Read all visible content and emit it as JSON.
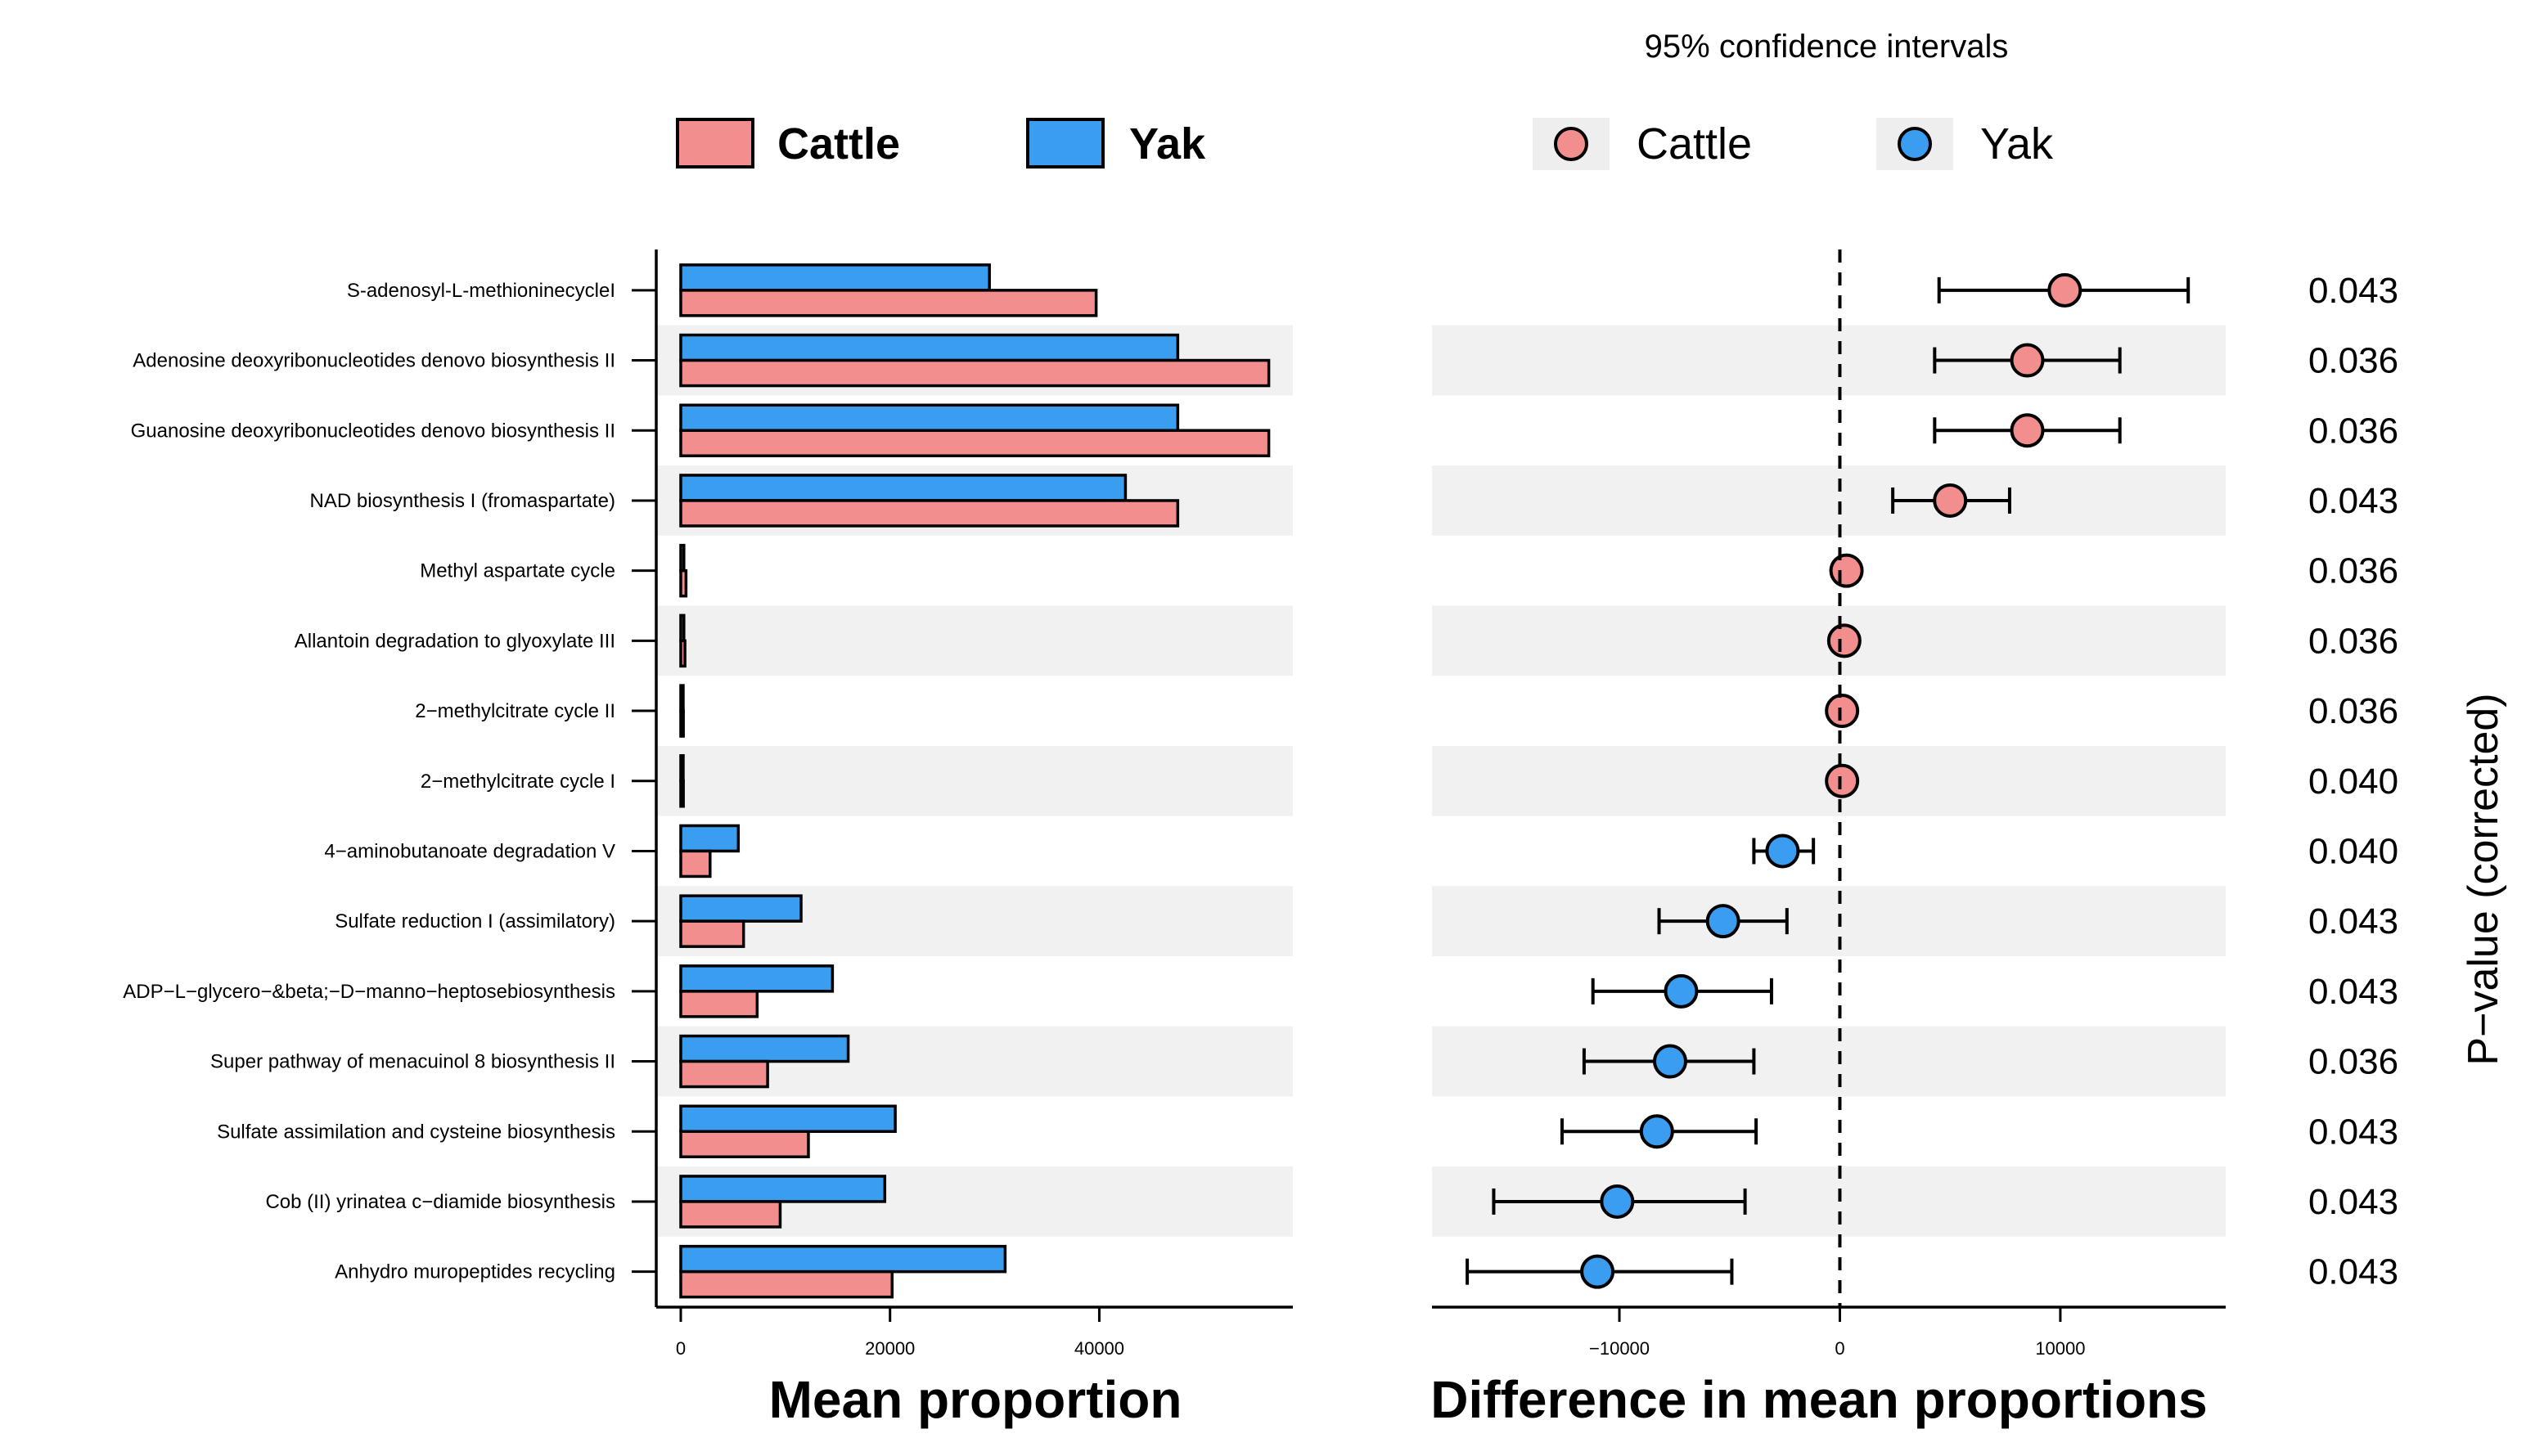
{
  "colors": {
    "cattle": "#f28e8e",
    "yak": "#3a9df0",
    "band": "#f1f1f1",
    "stroke": "#000000"
  },
  "chart_data": {
    "type": "bar",
    "categories": [
      "S-adenosyl-L-methioninecycleI",
      "Adenosine deoxyribonucleotides denovo biosynthesis II",
      "Guanosine deoxyribonucleotides denovo biosynthesis II",
      "NAD biosynthesis I (fromaspartate)",
      "Methyl aspartate cycle",
      "Allantoin degradation to glyoxylate III",
      "2−methylcitrate cycle II",
      "2−methylcitrate cycle I",
      "4−aminobutanoate degradation V",
      "Sulfate reduction I (assimilatory)",
      "ADP−L−glycero−&beta;−D−manno−heptosebiosynthesis",
      "Super pathway of menacuinol  8 biosynthesis II",
      "Sulfate assimilation and cysteine biosynthesis",
      "Cob (II) yrinatea c−diamide biosynthesis",
      "Anhydro muropeptides recycling"
    ],
    "bar_panel": {
      "xlabel": "Mean proportion",
      "xlim": [
        -2500,
        58500
      ],
      "xticks": [
        0,
        20000,
        40000
      ],
      "xtick_labels": [
        "0",
        "20000",
        "40000"
      ],
      "legend": [
        {
          "name": "Cattle",
          "color": "#f28e8e"
        },
        {
          "name": "Yak",
          "color": "#3a9df0"
        }
      ],
      "series": [
        {
          "name": "Yak",
          "color": "#3a9df0",
          "values": [
            29500,
            47500,
            47500,
            42500,
            300,
            300,
            200,
            200,
            5500,
            11500,
            14500,
            16000,
            20500,
            19500,
            31000
          ]
        },
        {
          "name": "Cattle",
          "color": "#f28e8e",
          "values": [
            39700,
            56200,
            56200,
            47500,
            500,
            400,
            250,
            250,
            2800,
            6000,
            7300,
            8300,
            12200,
            9500,
            20200
          ]
        }
      ]
    },
    "difference_panel": {
      "type": "scatter",
      "title": "95% confidence intervals",
      "xlabel": "Difference in mean proportions",
      "xlim": [
        -18500,
        17500
      ],
      "xticks": [
        -10000,
        0,
        10000
      ],
      "xtick_labels": [
        "−10000",
        "0",
        "10000"
      ],
      "legend": [
        {
          "name": "Cattle",
          "color": "#f28e8e"
        },
        {
          "name": "Yak",
          "color": "#3a9df0"
        }
      ],
      "points": [
        {
          "diff": 10200,
          "lower": 4500,
          "upper": 15800,
          "group": "Cattle"
        },
        {
          "diff": 8500,
          "lower": 4300,
          "upper": 12700,
          "group": "Cattle"
        },
        {
          "diff": 8500,
          "lower": 4300,
          "upper": 12700,
          "group": "Cattle"
        },
        {
          "diff": 5000,
          "lower": 2400,
          "upper": 7700,
          "group": "Cattle"
        },
        {
          "diff": 300,
          "lower": 300,
          "upper": 300,
          "group": "Cattle"
        },
        {
          "diff": 200,
          "lower": 200,
          "upper": 200,
          "group": "Cattle"
        },
        {
          "diff": 100,
          "lower": 100,
          "upper": 100,
          "group": "Cattle"
        },
        {
          "diff": 100,
          "lower": 100,
          "upper": 100,
          "group": "Cattle"
        },
        {
          "diff": -2600,
          "lower": -3900,
          "upper": -1200,
          "group": "Yak"
        },
        {
          "diff": -5300,
          "lower": -8200,
          "upper": -2400,
          "group": "Yak"
        },
        {
          "diff": -7200,
          "lower": -11200,
          "upper": -3100,
          "group": "Yak"
        },
        {
          "diff": -7700,
          "lower": -11600,
          "upper": -3900,
          "group": "Yak"
        },
        {
          "diff": -8300,
          "lower": -12600,
          "upper": -3800,
          "group": "Yak"
        },
        {
          "diff": -10100,
          "lower": -15700,
          "upper": -4300,
          "group": "Yak"
        },
        {
          "diff": -11000,
          "lower": -16900,
          "upper": -4900,
          "group": "Yak"
        }
      ]
    },
    "pvalues": {
      "label": "P−value (corrected)",
      "values": [
        "0.043",
        "0.036",
        "0.036",
        "0.043",
        "0.036",
        "0.036",
        "0.036",
        "0.040",
        "0.040",
        "0.043",
        "0.043",
        "0.036",
        "0.043",
        "0.043",
        "0.043"
      ]
    }
  }
}
